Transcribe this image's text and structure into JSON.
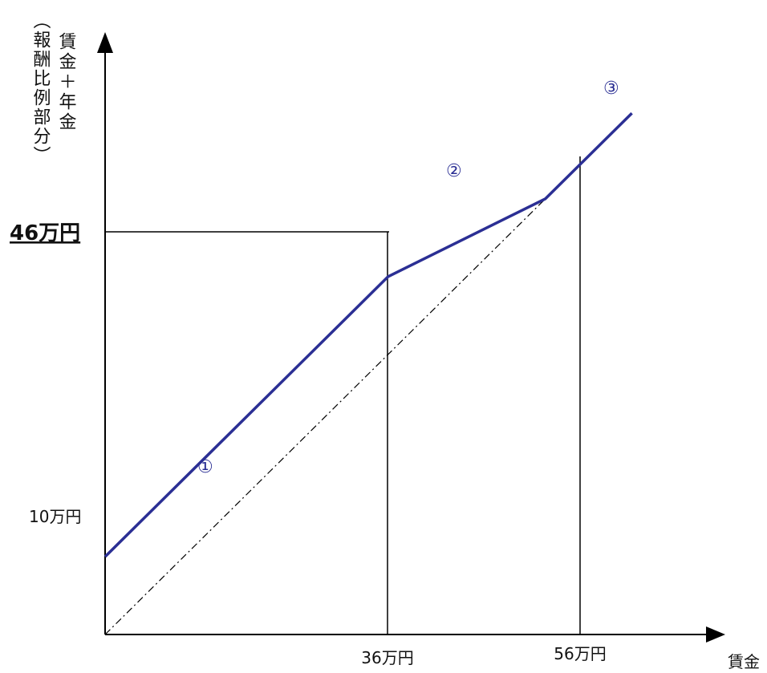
{
  "chart_data": {
    "type": "line",
    "y_axis_label_main": "賃金＋年金",
    "y_axis_label_sub": "（報酬比例部分）",
    "x_axis_label": "賃金",
    "y_highlight_label": "46万円",
    "y_low_label": "10万円",
    "x_ticks": [
      "36万円",
      "56万円"
    ],
    "region_labels": [
      "①",
      "②",
      "③"
    ],
    "series": [
      {
        "points": [
          [
            0,
            10
          ],
          [
            36,
            46
          ],
          [
            56,
            56
          ],
          [
            67,
            67
          ]
        ]
      },
      {
        "points": [
          [
            0,
            0
          ],
          [
            67,
            67
          ]
        ]
      }
    ]
  },
  "colors": {
    "main_line": "#2b2f94",
    "axis": "#000000",
    "reference_line": "#000000"
  }
}
